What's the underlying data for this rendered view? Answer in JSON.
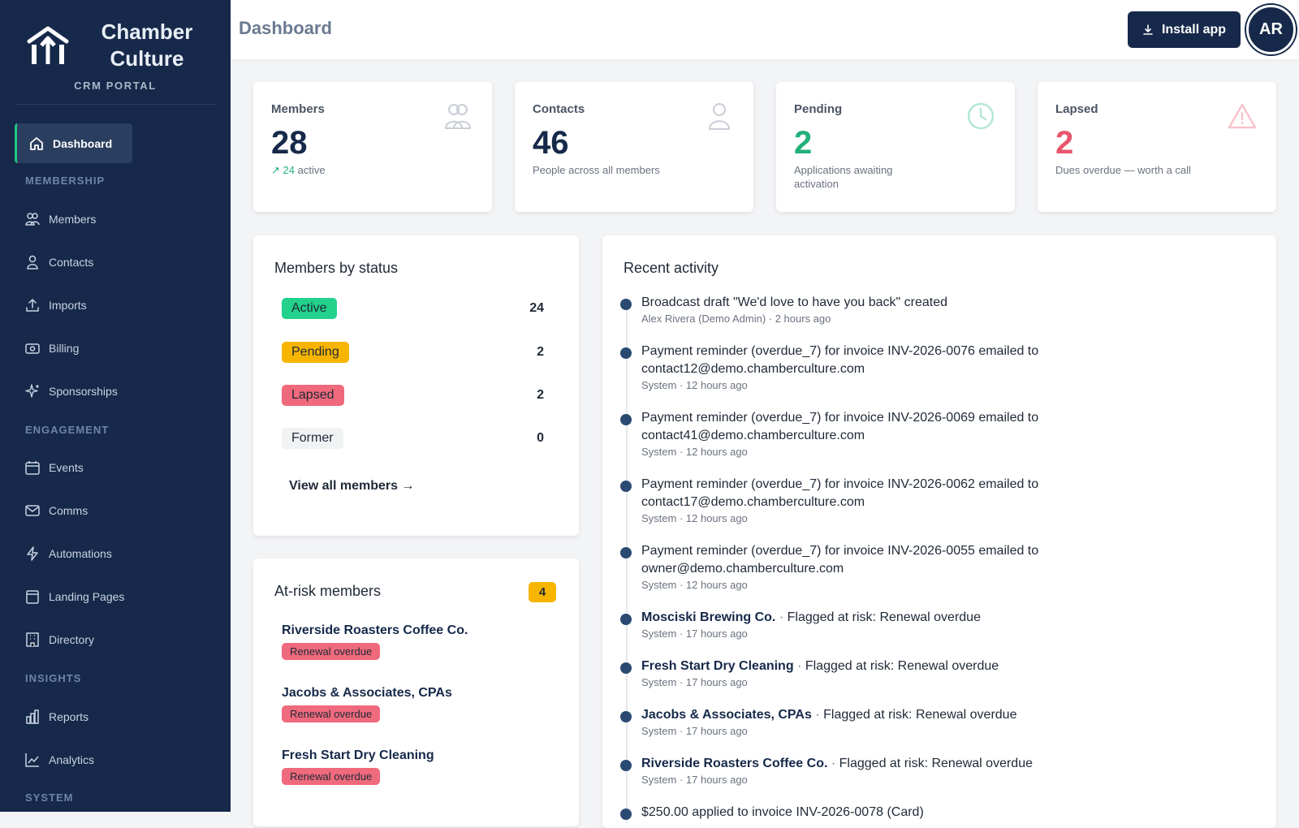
{
  "brand": {
    "line1": "Chamber",
    "line2": "Culture",
    "portal": "CRM PORTAL"
  },
  "sidebar": {
    "active": {
      "label": "Dashboard",
      "icon": "home-icon"
    },
    "sections": {
      "membership": "MEMBERSHIP",
      "engagement": "ENGAGEMENT",
      "insights": "INSIGHTS",
      "system": "SYSTEM"
    },
    "items": [
      {
        "label": "Members",
        "icon": "users-icon"
      },
      {
        "label": "Contacts",
        "icon": "person-icon"
      },
      {
        "label": "Imports",
        "icon": "upload-icon"
      },
      {
        "label": "Billing",
        "icon": "billing-icon"
      },
      {
        "label": "Sponsorships",
        "icon": "sparkle-icon"
      },
      {
        "label": "Events",
        "icon": "calendar-icon"
      },
      {
        "label": "Comms",
        "icon": "mail-icon"
      },
      {
        "label": "Automations",
        "icon": "bolt-icon"
      },
      {
        "label": "Landing Pages",
        "icon": "browser-icon"
      },
      {
        "label": "Directory",
        "icon": "building-icon"
      },
      {
        "label": "Reports",
        "icon": "bar-chart-icon"
      },
      {
        "label": "Analytics",
        "icon": "line-chart-icon"
      }
    ]
  },
  "header": {
    "title": "Dashboard",
    "install_label": "Install app",
    "avatar_initials": "AR"
  },
  "stats": [
    {
      "label": "Members",
      "value": "28",
      "sub_highlight": "24",
      "sub": "active",
      "color": "#16294a",
      "icon": "users-icon"
    },
    {
      "label": "Contacts",
      "value": "46",
      "sub": "People across all members",
      "color": "#16294a",
      "icon": "person-icon"
    },
    {
      "label": "Pending",
      "value": "2",
      "sub": "Applications awaiting activation",
      "color": "#22b07a",
      "icon": "clock-icon"
    },
    {
      "label": "Lapsed",
      "value": "2",
      "sub": "Dues overdue — worth a call",
      "color": "#e8566d",
      "icon": "warning-icon"
    }
  ],
  "status_panel": {
    "title": "Members by status",
    "rows": [
      {
        "label": "Active",
        "count": "24",
        "bg": "#22d18b"
      },
      {
        "label": "Pending",
        "count": "2",
        "bg": "#f7b500"
      },
      {
        "label": "Lapsed",
        "count": "2",
        "bg": "#ef6a7c"
      },
      {
        "label": "Former",
        "count": "0",
        "bg": "#f1f2f4"
      }
    ],
    "view_all": "View all members →"
  },
  "risk_panel": {
    "title": "At-risk members",
    "badge": "4",
    "items": [
      {
        "name": "Riverside Roasters Coffee Co.",
        "tag": "Renewal overdue"
      },
      {
        "name": "Jacobs & Associates, CPAs",
        "tag": "Renewal overdue"
      },
      {
        "name": "Fresh Start Dry Cleaning",
        "tag": "Renewal overdue"
      }
    ]
  },
  "activity": {
    "title": "Recent activity",
    "items": [
      {
        "text": "Broadcast draft \"We'd love to have you back\" created",
        "meta": "Alex Rivera (Demo Admin) · 2 hours ago"
      },
      {
        "text": "Payment reminder (overdue_7) for invoice INV-2026-0076 emailed to contact12@demo.chamberculture.com",
        "meta": "System · 12 hours ago"
      },
      {
        "text": "Payment reminder (overdue_7) for invoice INV-2026-0069 emailed to contact41@demo.chamberculture.com",
        "meta": "System · 12 hours ago"
      },
      {
        "text": "Payment reminder (overdue_7) for invoice INV-2026-0062 emailed to contact17@demo.chamberculture.com",
        "meta": "System · 12 hours ago"
      },
      {
        "text": "Payment reminder (overdue_7) for invoice INV-2026-0055 emailed to owner@demo.chamberculture.com",
        "meta": "System · 12 hours ago"
      },
      {
        "link": "Mosciski Brewing Co.",
        "text": "Flagged at risk: Renewal overdue",
        "meta": "System · 17 hours ago"
      },
      {
        "link": "Fresh Start Dry Cleaning",
        "text": "Flagged at risk: Renewal overdue",
        "meta": "System · 17 hours ago"
      },
      {
        "link": "Jacobs & Associates, CPAs",
        "text": "Flagged at risk: Renewal overdue",
        "meta": "System · 17 hours ago"
      },
      {
        "link": "Riverside Roasters Coffee Co.",
        "text": "Flagged at risk: Renewal overdue",
        "meta": "System · 17 hours ago"
      },
      {
        "text": "$250.00 applied to invoice INV-2026-0078 (Card)",
        "meta": ""
      }
    ]
  }
}
